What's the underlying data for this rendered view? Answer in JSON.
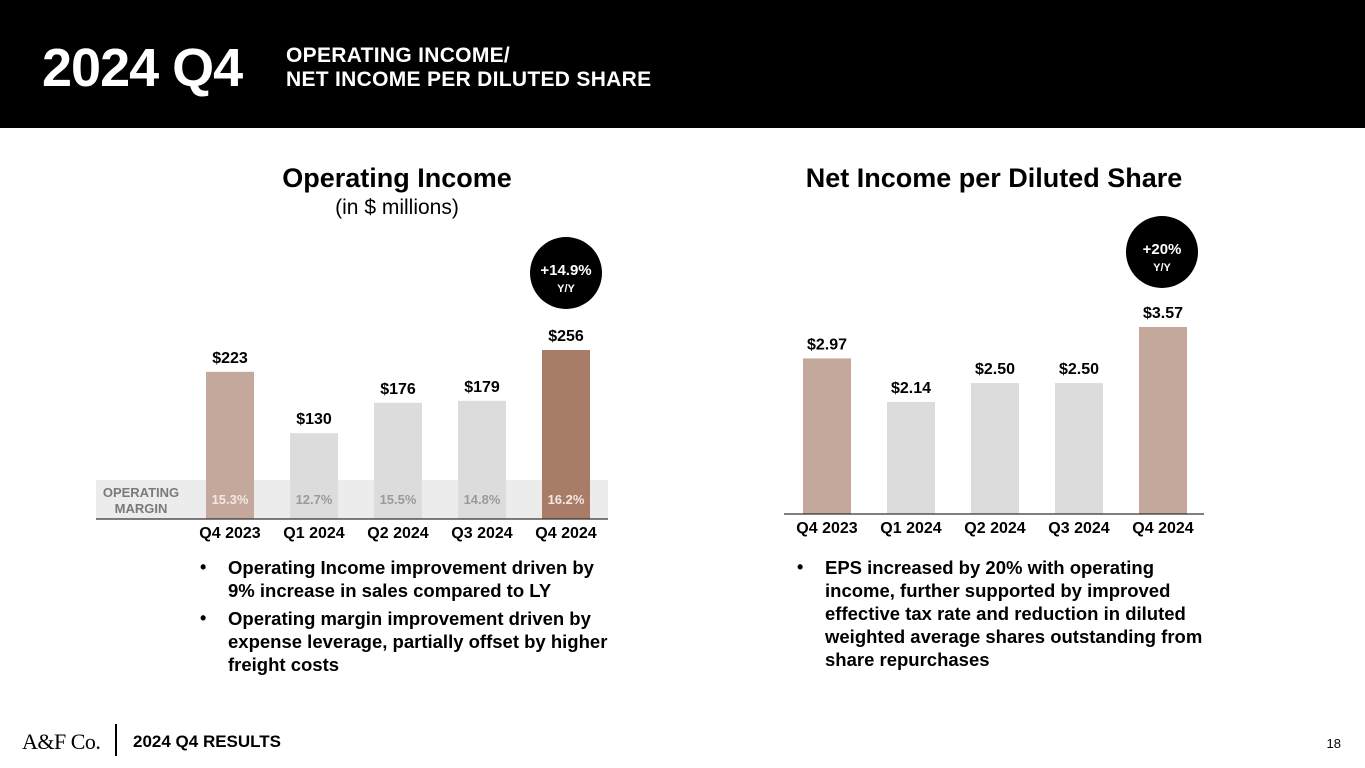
{
  "header": {
    "big_title": "2024 Q4",
    "subtitle_line1": "OPERATING INCOME/",
    "subtitle_line2": "NET INCOME PER DILUTED SHARE"
  },
  "chart_data": [
    {
      "type": "bar",
      "title": "Operating Income",
      "subtitle": "(in $ millions)",
      "categories": [
        "Q4 2023",
        "Q1 2024",
        "Q2 2024",
        "Q3 2024",
        "Q4 2024"
      ],
      "values": [
        223,
        130,
        176,
        179,
        256
      ],
      "value_labels": [
        "$223",
        "$130",
        "$176",
        "$179",
        "$256"
      ],
      "bar_colors": [
        "#c4a89c",
        "#dcdcdc",
        "#dcdcdc",
        "#dcdcdc",
        "#a97c67"
      ],
      "ylim": [
        0,
        256
      ],
      "badge": {
        "value": "+14.9%",
        "label": "Y/Y"
      },
      "margin_row": {
        "label_line1": "OPERATING",
        "label_line2": "MARGIN",
        "values": [
          "15.3%",
          "12.7%",
          "15.5%",
          "14.8%",
          "16.2%"
        ]
      }
    },
    {
      "type": "bar",
      "title": "Net Income per Diluted Share",
      "categories": [
        "Q4 2023",
        "Q1 2024",
        "Q2 2024",
        "Q3 2024",
        "Q4 2024"
      ],
      "values": [
        2.97,
        2.14,
        2.5,
        2.5,
        3.57
      ],
      "value_labels": [
        "$2.97",
        "$2.14",
        "$2.50",
        "$2.50",
        "$3.57"
      ],
      "bar_colors": [
        "#c4a89c",
        "#dcdcdc",
        "#dcdcdc",
        "#dcdcdc",
        "#c4a89c"
      ],
      "ylim": [
        0,
        3.57
      ],
      "badge": {
        "value": "+20%",
        "label": "Y/Y"
      }
    }
  ],
  "left_bullets": [
    "Operating Income improvement driven by 9% increase in sales compared to LY",
    "Operating margin improvement driven by expense leverage, partially offset by higher freight costs"
  ],
  "right_bullets": [
    "EPS increased by 20% with operating income, further supported by improved effective tax rate and reduction in diluted weighted average shares outstanding from share repurchases"
  ],
  "footer": {
    "logo": "A&F Co.",
    "label": "2024 Q4 RESULTS",
    "page_number": "18"
  },
  "colors": {
    "header_bg": "#000000",
    "text": "#000000",
    "margin_band": "#ececec",
    "margin_text": "#9a9a9a",
    "axis": "#333333"
  }
}
